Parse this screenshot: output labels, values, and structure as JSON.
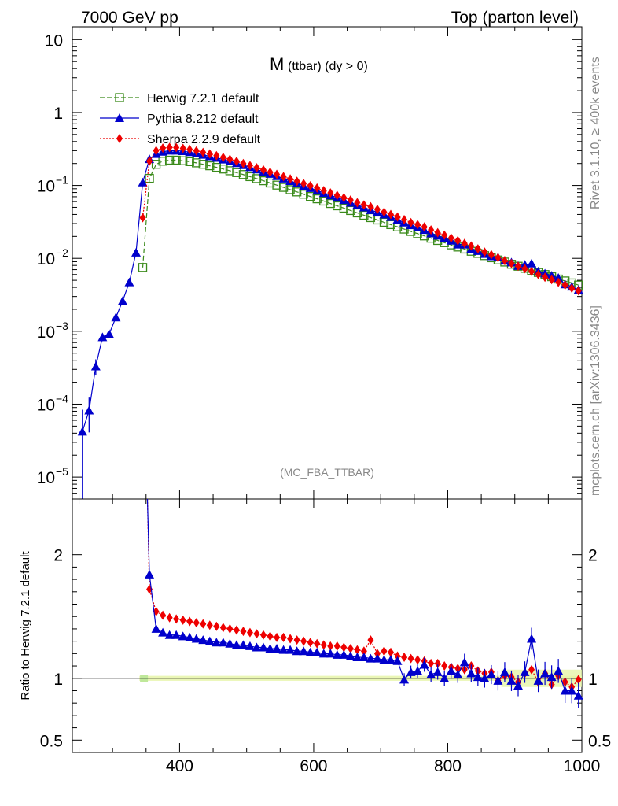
{
  "header": {
    "left": "7000 GeV pp",
    "right": "Top (parton level)"
  },
  "side_texts": {
    "rivet": "Rivet 3.1.10, ≥ 400k events",
    "mcplots": "mcplots.cern.ch [arXiv:1306.3436]"
  },
  "chart_data": [
    {
      "type": "line",
      "title_main": "M",
      "title_sub": "(ttbar) (dy > 0)",
      "watermark": "(MC_FBA_TTBAR)",
      "yscale": "log",
      "ylim": [
        5e-06,
        15
      ],
      "xlim": [
        240,
        1000
      ],
      "y_ticks": [
        {
          "v": 10,
          "label": "10"
        },
        {
          "v": 1,
          "label": "1"
        },
        {
          "v": 0.1,
          "label": "10",
          "exp": "−1"
        },
        {
          "v": 0.01,
          "label": "10",
          "exp": "−2"
        },
        {
          "v": 0.001,
          "label": "10",
          "exp": "−3"
        },
        {
          "v": 0.0001,
          "label": "10",
          "exp": "−4"
        },
        {
          "v": 1e-05,
          "label": "10",
          "exp": "−5"
        }
      ],
      "legend_position": "top-left",
      "series": [
        {
          "name": "Herwig 7.2.1 default",
          "color": "#3a8a1a",
          "marker": "open-square",
          "line": "dashed",
          "x": [
            345,
            355,
            365,
            375,
            385,
            395,
            405,
            415,
            425,
            435,
            445,
            455,
            465,
            475,
            485,
            495,
            505,
            515,
            525,
            535,
            545,
            555,
            565,
            575,
            585,
            595,
            605,
            615,
            625,
            635,
            645,
            655,
            665,
            675,
            685,
            695,
            705,
            715,
            725,
            735,
            745,
            755,
            765,
            775,
            785,
            795,
            805,
            815,
            825,
            835,
            845,
            855,
            865,
            875,
            885,
            895,
            905,
            915,
            925,
            935,
            945,
            955,
            965,
            975,
            985,
            995
          ],
          "y": [
            0.0075,
            0.125,
            0.195,
            0.215,
            0.222,
            0.222,
            0.218,
            0.212,
            0.204,
            0.195,
            0.186,
            0.177,
            0.168,
            0.159,
            0.15,
            0.141,
            0.132,
            0.124,
            0.116,
            0.108,
            0.101,
            0.094,
            0.0875,
            0.0815,
            0.0758,
            0.0705,
            0.0655,
            0.061,
            0.0565,
            0.0525,
            0.0488,
            0.0453,
            0.042,
            0.039,
            0.0362,
            0.0336,
            0.0312,
            0.029,
            0.027,
            0.0252,
            0.0234,
            0.0218,
            0.0203,
            0.0189,
            0.0176,
            0.0164,
            0.0153,
            0.0143,
            0.0134,
            0.0125,
            0.0117,
            0.0109,
            0.0102,
            0.0095,
            0.0089,
            0.0083,
            0.0078,
            0.0073,
            0.0068,
            0.0064,
            0.006,
            0.0056,
            0.0052,
            0.0049,
            0.0046,
            0.0043
          ]
        },
        {
          "name": "Pythia 8.212 default",
          "color": "#0000cc",
          "marker": "triangle",
          "line": "solid",
          "x": [
            255,
            265,
            275,
            285,
            295,
            305,
            315,
            325,
            335,
            345,
            355,
            365,
            375,
            385,
            395,
            405,
            415,
            425,
            435,
            445,
            455,
            465,
            475,
            485,
            495,
            505,
            515,
            525,
            535,
            545,
            555,
            565,
            575,
            585,
            595,
            605,
            615,
            625,
            635,
            645,
            655,
            665,
            675,
            685,
            695,
            705,
            715,
            725,
            735,
            745,
            755,
            765,
            775,
            785,
            795,
            805,
            815,
            825,
            835,
            845,
            855,
            865,
            875,
            885,
            895,
            905,
            915,
            925,
            935,
            945,
            955,
            965,
            975,
            985,
            995
          ],
          "y": [
            4.2e-05,
            8.2e-05,
            0.00033,
            0.00083,
            0.00092,
            0.00155,
            0.0026,
            0.0047,
            0.012,
            0.11,
            0.23,
            0.27,
            0.29,
            0.3,
            0.3,
            0.295,
            0.286,
            0.275,
            0.263,
            0.251,
            0.239,
            0.227,
            0.214,
            0.202,
            0.19,
            0.178,
            0.166,
            0.155,
            0.144,
            0.134,
            0.124,
            0.115,
            0.107,
            0.099,
            0.092,
            0.085,
            0.079,
            0.073,
            0.068,
            0.063,
            0.058,
            0.054,
            0.05,
            0.046,
            0.043,
            0.04,
            0.037,
            0.034,
            0.031,
            0.0285,
            0.0265,
            0.0245,
            0.022,
            0.0205,
            0.019,
            0.0175,
            0.0155,
            0.0155,
            0.0135,
            0.0126,
            0.0115,
            0.0107,
            0.0103,
            0.0093,
            0.0088,
            0.0079,
            0.0082,
            0.0085,
            0.0066,
            0.0062,
            0.0058,
            0.0054,
            0.0044,
            0.0041,
            0.0037
          ]
        },
        {
          "name": "Sherpa 2.2.9 default",
          "color": "#ee0000",
          "marker": "diamond",
          "line": "dotted",
          "x": [
            345,
            355,
            365,
            375,
            385,
            395,
            405,
            415,
            425,
            435,
            445,
            455,
            465,
            475,
            485,
            495,
            505,
            515,
            525,
            535,
            545,
            555,
            565,
            575,
            585,
            595,
            605,
            615,
            625,
            635,
            645,
            655,
            665,
            675,
            685,
            695,
            705,
            715,
            725,
            735,
            745,
            755,
            765,
            775,
            785,
            795,
            805,
            815,
            825,
            835,
            845,
            855,
            865,
            875,
            885,
            895,
            905,
            915,
            925,
            935,
            945,
            955,
            965,
            975,
            985,
            995
          ],
          "y": [
            0.036,
            0.215,
            0.3,
            0.325,
            0.332,
            0.33,
            0.322,
            0.311,
            0.298,
            0.284,
            0.27,
            0.256,
            0.242,
            0.228,
            0.214,
            0.2,
            0.187,
            0.175,
            0.163,
            0.152,
            0.142,
            0.132,
            0.123,
            0.114,
            0.106,
            0.099,
            0.092,
            0.085,
            0.079,
            0.073,
            0.068,
            0.063,
            0.058,
            0.054,
            0.051,
            0.047,
            0.043,
            0.04,
            0.037,
            0.034,
            0.031,
            0.029,
            0.027,
            0.0245,
            0.0225,
            0.0208,
            0.019,
            0.0175,
            0.016,
            0.0148,
            0.0135,
            0.0122,
            0.0112,
            0.0102,
            0.0093,
            0.0085,
            0.0078,
            0.0072,
            0.0066,
            0.006,
            0.0055,
            0.0051,
            0.0047,
            0.0043,
            0.0039,
            0.0036
          ]
        }
      ]
    },
    {
      "type": "line",
      "ylabel": "Ratio to Herwig 7.2.1 default",
      "ylim": [
        0.4,
        2.45
      ],
      "xlim": [
        240,
        1000
      ],
      "x_ticks": [
        400,
        600,
        800,
        1000
      ],
      "y_ticks_left": [
        {
          "v": 2,
          "label": "2"
        },
        {
          "v": 1,
          "label": "1"
        },
        {
          "v": 0.5,
          "label": "0.5"
        }
      ],
      "reference": 1,
      "series": [
        {
          "name": "Pythia 8.212 default",
          "color": "#0000cc",
          "x": [
            355,
            365,
            375,
            385,
            395,
            405,
            415,
            425,
            435,
            445,
            455,
            465,
            475,
            485,
            495,
            505,
            515,
            525,
            535,
            545,
            555,
            565,
            575,
            585,
            595,
            605,
            615,
            625,
            635,
            645,
            655,
            665,
            675,
            685,
            695,
            705,
            715,
            725,
            735,
            745,
            755,
            765,
            775,
            785,
            795,
            805,
            815,
            825,
            835,
            845,
            855,
            865,
            875,
            885,
            895,
            905,
            915,
            925,
            935,
            945,
            955,
            965,
            975,
            985,
            995
          ],
          "y": [
            1.84,
            1.4,
            1.37,
            1.35,
            1.35,
            1.34,
            1.33,
            1.32,
            1.31,
            1.3,
            1.29,
            1.29,
            1.28,
            1.27,
            1.27,
            1.26,
            1.25,
            1.25,
            1.24,
            1.24,
            1.23,
            1.23,
            1.22,
            1.22,
            1.21,
            1.21,
            1.2,
            1.2,
            1.19,
            1.19,
            1.18,
            1.17,
            1.17,
            1.16,
            1.16,
            1.15,
            1.15,
            1.14,
            0.99,
            1.05,
            1.06,
            1.11,
            1.03,
            1.05,
            1.0,
            1.06,
            1.03,
            1.13,
            1.04,
            1.01,
            1.0,
            1.03,
            0.98,
            1.05,
            0.98,
            0.94,
            1.05,
            1.32,
            0.98,
            1.04,
            1.01,
            1.06,
            0.9,
            0.9,
            0.86
          ]
        },
        {
          "name": "Sherpa 2.2.9 default",
          "color": "#ee0000",
          "x": [
            355,
            365,
            375,
            385,
            395,
            405,
            415,
            425,
            435,
            445,
            455,
            465,
            475,
            485,
            495,
            505,
            515,
            525,
            535,
            545,
            555,
            565,
            575,
            585,
            595,
            605,
            615,
            625,
            635,
            645,
            655,
            665,
            675,
            685,
            695,
            705,
            715,
            725,
            735,
            745,
            755,
            765,
            775,
            785,
            795,
            805,
            815,
            825,
            835,
            845,
            855,
            865,
            875,
            885,
            895,
            905,
            915,
            925,
            935,
            945,
            955,
            965,
            975,
            985,
            995
          ],
          "y": [
            1.72,
            1.54,
            1.51,
            1.49,
            1.48,
            1.47,
            1.46,
            1.45,
            1.44,
            1.43,
            1.42,
            1.41,
            1.4,
            1.39,
            1.38,
            1.37,
            1.36,
            1.35,
            1.34,
            1.33,
            1.33,
            1.32,
            1.31,
            1.3,
            1.29,
            1.28,
            1.27,
            1.26,
            1.26,
            1.25,
            1.24,
            1.23,
            1.22,
            1.31,
            1.2,
            1.22,
            1.21,
            1.18,
            1.17,
            1.16,
            1.15,
            1.14,
            1.12,
            1.12,
            1.1,
            1.09,
            1.08,
            1.07,
            1.1,
            1.06,
            1.04,
            1.05,
            0.98,
            1.02,
            1.01,
            0.97,
            1.04,
            1.07,
            0.97,
            1.04,
            0.95,
            1.02,
            0.97,
            0.93,
            0.99
          ]
        }
      ]
    }
  ]
}
